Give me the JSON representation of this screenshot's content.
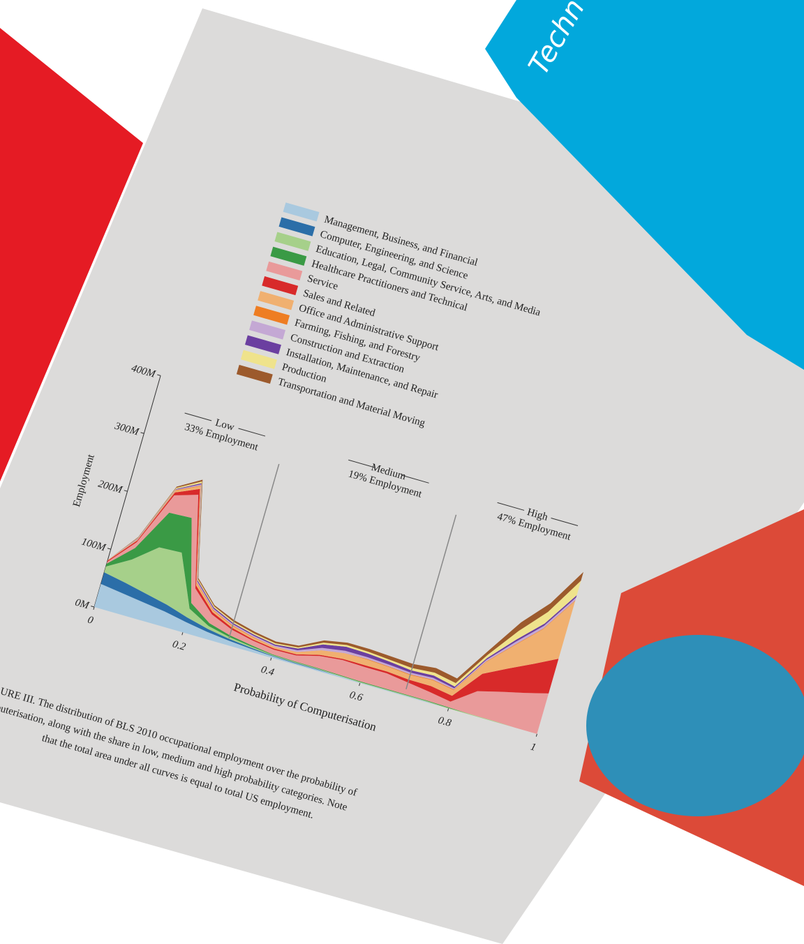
{
  "cover_text": "Techn",
  "chart_data": {
    "type": "stacked_area",
    "y_label": "Employment",
    "x_label": "Probability of Computerisation",
    "x": [
      0,
      0.05,
      0.1,
      0.15,
      0.2,
      0.25,
      0.3,
      0.35,
      0.4,
      0.45,
      0.5,
      0.55,
      0.6,
      0.65,
      0.7,
      0.75,
      0.8,
      0.85,
      0.9,
      0.95,
      1
    ],
    "xlim": [
      0,
      1
    ],
    "xticks": [
      0,
      0.2,
      0.4,
      0.6,
      0.8,
      1
    ],
    "ylim": [
      0,
      400000000.0
    ],
    "yticks": [
      {
        "value": 0,
        "label": "0M"
      },
      {
        "value": 100000000.0,
        "label": "100M"
      },
      {
        "value": 200000000.0,
        "label": "200M"
      },
      {
        "value": 300000000.0,
        "label": "300M"
      },
      {
        "value": 400000000.0,
        "label": "400M"
      }
    ],
    "category_boundaries": [
      0.3,
      0.7
    ],
    "annotations": [
      "Low",
      "33% Employment",
      "Medium",
      "19% Employment",
      "High",
      "47% Employment"
    ],
    "series": [
      {
        "name": "Management, Business, and Financial",
        "color": "#a9c9df",
        "values": [
          40000000.0,
          35000000.0,
          30000000.0,
          25000000.0,
          18000000.0,
          12000000.0,
          8000000.0,
          5000000.0,
          3000000.0,
          2000000.0,
          2000000.0,
          2000000.0,
          1000000.0,
          1000000.0,
          1000000.0,
          1000000.0,
          0,
          0,
          0,
          0,
          0
        ]
      },
      {
        "name": "Computer, Engineering, and Science",
        "color": "#2b6ea8",
        "values": [
          20000000.0,
          18000000.0,
          15000000.0,
          12000000.0,
          8000000.0,
          5000000.0,
          3000000.0,
          2000000.0,
          1000000.0,
          1000000.0,
          1000000.0,
          0,
          0,
          0,
          0,
          0,
          0,
          0,
          0,
          0,
          0
        ]
      },
      {
        "name": "Education, Legal, Community Service, Arts, and Media",
        "color": "#a6d08a",
        "values": [
          10000000.0,
          40000000.0,
          80000000.0,
          90000000.0,
          15000000.0,
          5000000.0,
          3000000.0,
          2000000.0,
          1000000.0,
          1000000.0,
          1000000.0,
          1000000.0,
          1000000.0,
          1000000.0,
          1000000.0,
          1000000.0,
          1000000.0,
          1000000.0,
          1000000.0,
          0,
          0
        ]
      },
      {
        "name": "Healthcare Practitioners and Technical",
        "color": "#3a9a45",
        "values": [
          5000000.0,
          20000000.0,
          60000000.0,
          60000000.0,
          10000000.0,
          5000000.0,
          3000000.0,
          2000000.0,
          1000000.0,
          1000000.0,
          1000000.0,
          1000000.0,
          1000000.0,
          1000000.0,
          1000000.0,
          1000000.0,
          1000000.0,
          0,
          0,
          0,
          0
        ]
      },
      {
        "name": "Service",
        "color": "#e99a9a",
        "values": [
          3000000.0,
          10000000.0,
          30000000.0,
          40000000.0,
          25000000.0,
          15000000.0,
          10000000.0,
          8000000.0,
          8000000.0,
          10000000.0,
          20000000.0,
          25000000.0,
          25000000.0,
          25000000.0,
          20000000.0,
          15000000.0,
          10000000.0,
          40000000.0,
          50000000.0,
          60000000.0,
          70000000.0
        ]
      },
      {
        "name": "Sales and Related",
        "color": "#d82a2a",
        "values": [
          2000000.0,
          3000000.0,
          5000000.0,
          10000000.0,
          5000000.0,
          4000000.0,
          3000000.0,
          2000000.0,
          2000000.0,
          2000000.0,
          2000000.0,
          2000000.0,
          3000000.0,
          3000000.0,
          5000000.0,
          10000000.0,
          10000000.0,
          30000000.0,
          40000000.0,
          50000000.0,
          60000000.0
        ]
      },
      {
        "name": "Office and Administrative Support",
        "color": "#f0b070",
        "values": [
          1000000.0,
          2000000.0,
          3000000.0,
          5000000.0,
          4000000.0,
          3000000.0,
          3000000.0,
          3000000.0,
          3000000.0,
          4000000.0,
          8000000.0,
          10000000.0,
          10000000.0,
          8000000.0,
          8000000.0,
          10000000.0,
          10000000.0,
          20000000.0,
          40000000.0,
          60000000.0,
          100000000.0
        ]
      },
      {
        "name": "Farming, Fishing, and Forestry",
        "color": "#ee7d22",
        "values": [
          0,
          0,
          1000000.0,
          1000000.0,
          1000000.0,
          1000000.0,
          1000000.0,
          1000000.0,
          0,
          0,
          0,
          0,
          1000000.0,
          1000000.0,
          1000000.0,
          1000000.0,
          1000000.0,
          1000000.0,
          1000000.0,
          1000000.0,
          1000000.0
        ]
      },
      {
        "name": "Construction and Extraction",
        "color": "#c4a8d4",
        "values": [
          0,
          1000000.0,
          1000000.0,
          2000000.0,
          2000000.0,
          2000000.0,
          2000000.0,
          2000000.0,
          2000000.0,
          3000000.0,
          4000000.0,
          4000000.0,
          3000000.0,
          3000000.0,
          3000000.0,
          3000000.0,
          2000000.0,
          3000000.0,
          5000000.0,
          5000000.0,
          5000000.0
        ]
      },
      {
        "name": "Installation, Maintenance, and Repair",
        "color": "#6b3fa0",
        "values": [
          0,
          1000000.0,
          1000000.0,
          2000000.0,
          2000000.0,
          2000000.0,
          2000000.0,
          2000000.0,
          2000000.0,
          3000000.0,
          6000000.0,
          7000000.0,
          6000000.0,
          5000000.0,
          4000000.0,
          4000000.0,
          3000000.0,
          3000000.0,
          4000000.0,
          4000000.0,
          4000000.0
        ]
      },
      {
        "name": "Production",
        "color": "#efe38c",
        "values": [
          0,
          1000000.0,
          2000000.0,
          3000000.0,
          2000000.0,
          2000000.0,
          2000000.0,
          2000000.0,
          2000000.0,
          2000000.0,
          3000000.0,
          3000000.0,
          3000000.0,
          3000000.0,
          4000000.0,
          5000000.0,
          6000000.0,
          6000000.0,
          15000000.0,
          20000000.0,
          25000000.0
        ]
      },
      {
        "name": "Transportation and Material Moving",
        "color": "#9c5a2c",
        "values": [
          0,
          1000000.0,
          2000000.0,
          3000000.0,
          2000000.0,
          2000000.0,
          3000000.0,
          3000000.0,
          3000000.0,
          3000000.0,
          4000000.0,
          4000000.0,
          5000000.0,
          6000000.0,
          7000000.0,
          8000000.0,
          8000000.0,
          8000000.0,
          15000000.0,
          15000000.0,
          15000000.0
        ]
      }
    ],
    "caption": [
      "URE III. The distribution of BLS 2010 occupational employment over the probability of",
      "puterisation, along with the share in low, medium and high probability categories. Note",
      "that the total area under all curves is equal to total US employment."
    ]
  }
}
